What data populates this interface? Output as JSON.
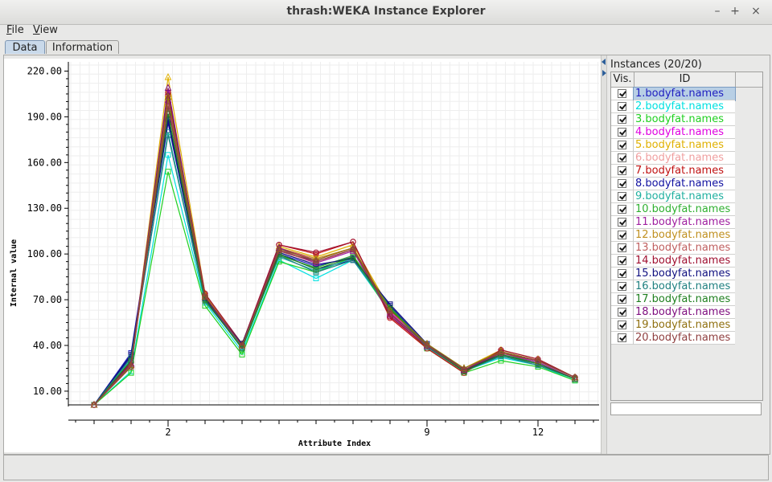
{
  "window": {
    "title": "thrash:WEKA Instance Explorer",
    "buttons": [
      "–",
      "+",
      "×"
    ]
  },
  "menubar": {
    "items": [
      {
        "hot": "F",
        "rest": "ile"
      },
      {
        "hot": "V",
        "rest": "iew"
      }
    ]
  },
  "tabs": [
    "Data",
    "Information"
  ],
  "plot": {
    "ylabel": "Internal value",
    "xlabel": "Attribute Index",
    "yticks": [
      "220.00",
      "190.00",
      "160.00",
      "130.00",
      "100.00",
      "70.00",
      "40.00",
      "10.00"
    ],
    "xticks": [
      "2",
      "9",
      "12"
    ]
  },
  "chart_data": {
    "type": "line",
    "xlabel": "Attribute Index",
    "ylabel": "Internal value",
    "ylim": [
      1,
      225
    ],
    "x": [
      0,
      1,
      2,
      3,
      4,
      5,
      6,
      7,
      8,
      9,
      10,
      11,
      12,
      13
    ],
    "xtick_positions": [
      2,
      9,
      12
    ],
    "series": [
      {
        "name": "1.bodyfat.names",
        "color": "#2020c0",
        "marker": "square",
        "values": [
          1.0,
          35,
          190,
          70,
          41,
          100,
          92,
          98,
          65,
          40,
          24,
          33,
          28,
          18
        ]
      },
      {
        "name": "2.bodyfat.names",
        "color": "#00e0e0",
        "marker": "square",
        "values": [
          1.0,
          23,
          165,
          68,
          36,
          96,
          84,
          96,
          62,
          39,
          23,
          32,
          27,
          17
        ]
      },
      {
        "name": "3.bodyfat.names",
        "color": "#20d020",
        "marker": "square",
        "values": [
          1.0,
          22,
          154,
          66,
          34,
          95,
          88,
          98,
          61,
          38,
          22,
          30,
          26,
          17
        ]
      },
      {
        "name": "4.bodyfat.names",
        "color": "#e000e0",
        "marker": "triangle",
        "values": [
          1.0,
          28,
          206,
          72,
          39,
          104,
          96,
          104,
          62,
          40,
          24,
          36,
          30,
          19
        ]
      },
      {
        "name": "5.bodyfat.names",
        "color": "#e0b000",
        "marker": "triangle",
        "values": [
          1.0,
          27,
          216,
          74,
          40,
          105,
          98,
          106,
          64,
          41,
          25,
          37,
          31,
          19
        ]
      },
      {
        "name": "6.bodyfat.names",
        "color": "#f0a0a0",
        "marker": "triangle",
        "values": [
          1.0,
          26,
          200,
          72,
          39,
          102,
          94,
          103,
          63,
          40,
          24,
          35,
          30,
          18
        ]
      },
      {
        "name": "7.bodyfat.names",
        "color": "#c01010",
        "marker": "circle",
        "values": [
          1.0,
          29,
          204,
          73,
          40,
          106,
          100,
          108,
          58,
          38,
          22,
          36,
          30,
          19
        ]
      },
      {
        "name": "8.bodyfat.names",
        "color": "#1010a0",
        "marker": "square",
        "values": [
          1.0,
          33,
          186,
          70,
          40,
          100,
          90,
          96,
          66,
          40,
          23,
          34,
          28,
          18
        ]
      },
      {
        "name": "9.bodyfat.names",
        "color": "#20b0a0",
        "marker": "square",
        "values": [
          1.0,
          31,
          180,
          69,
          39,
          98,
          89,
          97,
          64,
          39,
          23,
          33,
          28,
          18
        ]
      },
      {
        "name": "10.bodyfat.names",
        "color": "#30b030",
        "marker": "square",
        "values": [
          1.0,
          30,
          196,
          70,
          38,
          99,
          91,
          99,
          65,
          40,
          24,
          34,
          29,
          18
        ]
      },
      {
        "name": "11.bodyfat.names",
        "color": "#a020a0",
        "marker": "triangle",
        "values": [
          1.0,
          28,
          201,
          71,
          40,
          103,
          94,
          102,
          60,
          39,
          23,
          35,
          29,
          18
        ]
      },
      {
        "name": "12.bodyfat.names",
        "color": "#c09020",
        "marker": "triangle",
        "values": [
          1.0,
          27,
          205,
          73,
          41,
          104,
          97,
          104,
          63,
          41,
          25,
          36,
          30,
          19
        ]
      },
      {
        "name": "13.bodyfat.names",
        "color": "#c06060",
        "marker": "circle",
        "values": [
          1.0,
          26,
          198,
          72,
          40,
          102,
          95,
          103,
          61,
          40,
          24,
          35,
          30,
          19
        ]
      },
      {
        "name": "14.bodyfat.names",
        "color": "#a01030",
        "marker": "circle",
        "values": [
          1.0,
          29,
          206,
          74,
          41,
          106,
          101,
          108,
          59,
          39,
          23,
          37,
          31,
          19
        ]
      },
      {
        "name": "15.bodyfat.names",
        "color": "#101080",
        "marker": "square",
        "values": [
          1.0,
          34,
          188,
          71,
          41,
          101,
          93,
          97,
          67,
          41,
          24,
          34,
          28,
          18
        ]
      },
      {
        "name": "16.bodyfat.names",
        "color": "#208080",
        "marker": "square",
        "values": [
          1.0,
          32,
          178,
          69,
          39,
          99,
          88,
          96,
          64,
          39,
          23,
          33,
          27,
          18
        ]
      },
      {
        "name": "17.bodyfat.names",
        "color": "#208020",
        "marker": "square",
        "values": [
          1.0,
          30,
          192,
          70,
          38,
          100,
          90,
          98,
          64,
          40,
          23,
          34,
          28,
          18
        ]
      },
      {
        "name": "18.bodyfat.names",
        "color": "#801080",
        "marker": "triangle",
        "values": [
          1.0,
          28,
          209,
          72,
          40,
          104,
          95,
          103,
          61,
          40,
          24,
          36,
          30,
          19
        ]
      },
      {
        "name": "19.bodyfat.names",
        "color": "#907010",
        "marker": "triangle",
        "values": [
          1.0,
          27,
          203,
          72,
          40,
          103,
          96,
          104,
          63,
          41,
          25,
          36,
          30,
          19
        ]
      },
      {
        "name": "20.bodyfat.names",
        "color": "#904040",
        "marker": "circle",
        "values": [
          1.0,
          26,
          197,
          72,
          40,
          102,
          95,
          103,
          61,
          40,
          24,
          35,
          30,
          19
        ]
      }
    ]
  },
  "instances": {
    "title": "Instances (20/20)",
    "col_vis": "Vis.",
    "col_id": "ID",
    "rows": [
      "1.bodyfat.names",
      "2.bodyfat.names",
      "3.bodyfat.names",
      "4.bodyfat.names",
      "5.bodyfat.names",
      "6.bodyfat.names",
      "7.bodyfat.names",
      "8.bodyfat.names",
      "9.bodyfat.names",
      "10.bodyfat.names",
      "11.bodyfat.names",
      "12.bodyfat.names",
      "13.bodyfat.names",
      "14.bodyfat.names",
      "15.bodyfat.names",
      "16.bodyfat.names",
      "17.bodyfat.names",
      "18.bodyfat.names",
      "19.bodyfat.names",
      "20.bodyfat.names"
    ],
    "selected_index": 0
  }
}
